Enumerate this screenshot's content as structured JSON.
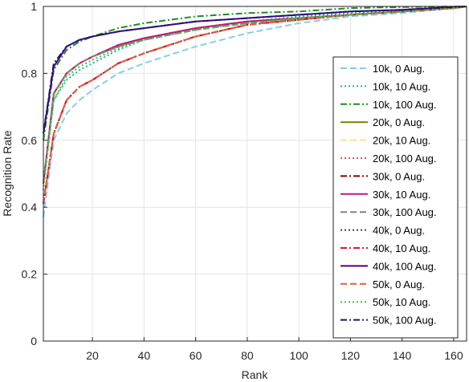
{
  "chart_data": {
    "type": "line",
    "xlabel": "Rank",
    "ylabel": "Recognition Rate",
    "xlim": [
      1,
      165
    ],
    "ylim": [
      0,
      1
    ],
    "xticks": [
      20,
      40,
      60,
      80,
      100,
      120,
      140,
      160
    ],
    "yticks": [
      0,
      0.2,
      0.4,
      0.6,
      0.8,
      1
    ],
    "ytick_labels": [
      "0",
      "0.2",
      "0.4",
      "0.6",
      "0.8",
      "1"
    ],
    "grid": true,
    "legend_position": "bottom-right",
    "x": [
      1,
      5,
      10,
      15,
      20,
      30,
      40,
      60,
      80,
      100,
      120,
      140,
      160,
      165
    ],
    "series": [
      {
        "name": "10k, 0 Aug.",
        "color": "#87ceeb",
        "dash": "dash",
        "values": [
          0.37,
          0.6,
          0.68,
          0.72,
          0.75,
          0.8,
          0.83,
          0.88,
          0.92,
          0.95,
          0.97,
          0.98,
          0.995,
          1.0
        ]
      },
      {
        "name": "10k, 10 Aug.",
        "color": "#20b2aa",
        "dash": "dot",
        "values": [
          0.48,
          0.72,
          0.78,
          0.81,
          0.83,
          0.87,
          0.9,
          0.935,
          0.955,
          0.97,
          0.98,
          0.99,
          0.995,
          1.0
        ]
      },
      {
        "name": "10k, 100 Aug.",
        "color": "#228b22",
        "dash": "dashdot",
        "values": [
          0.6,
          0.81,
          0.87,
          0.895,
          0.91,
          0.935,
          0.95,
          0.97,
          0.98,
          0.985,
          0.995,
          0.998,
          1.0,
          1.0
        ]
      },
      {
        "name": "20k, 0 Aug.",
        "color": "#808000",
        "dash": "solid",
        "values": [
          0.47,
          0.74,
          0.8,
          0.83,
          0.85,
          0.88,
          0.905,
          0.935,
          0.955,
          0.965,
          0.975,
          0.985,
          0.995,
          1.0
        ]
      },
      {
        "name": "20k, 10 Aug.",
        "color": "#f0e68c",
        "dash": "dash",
        "values": [
          0.47,
          0.73,
          0.8,
          0.83,
          0.85,
          0.88,
          0.9,
          0.93,
          0.95,
          0.965,
          0.975,
          0.985,
          0.995,
          1.0
        ]
      },
      {
        "name": "20k, 100 Aug.",
        "color": "#cd5c5c",
        "dash": "dot",
        "values": [
          0.47,
          0.74,
          0.8,
          0.83,
          0.85,
          0.885,
          0.905,
          0.935,
          0.955,
          0.965,
          0.975,
          0.985,
          0.995,
          1.0
        ]
      },
      {
        "name": "30k, 0 Aug.",
        "color": "#800000",
        "dash": "dashdot",
        "values": [
          0.41,
          0.62,
          0.72,
          0.76,
          0.78,
          0.83,
          0.86,
          0.91,
          0.945,
          0.96,
          0.975,
          0.985,
          0.995,
          1.0
        ]
      },
      {
        "name": "30k, 10 Aug.",
        "color": "#c71585",
        "dash": "solid",
        "values": [
          0.47,
          0.74,
          0.8,
          0.83,
          0.85,
          0.885,
          0.905,
          0.935,
          0.955,
          0.965,
          0.975,
          0.985,
          0.995,
          1.0
        ]
      },
      {
        "name": "30k, 100 Aug.",
        "color": "#808080",
        "dash": "dash",
        "values": [
          0.47,
          0.74,
          0.8,
          0.83,
          0.85,
          0.88,
          0.9,
          0.93,
          0.95,
          0.965,
          0.975,
          0.985,
          0.995,
          1.0
        ]
      },
      {
        "name": "40k, 0 Aug.",
        "color": "#2f4f2f",
        "dash": "dot",
        "values": [
          0.41,
          0.62,
          0.72,
          0.76,
          0.78,
          0.83,
          0.86,
          0.91,
          0.945,
          0.96,
          0.975,
          0.985,
          0.995,
          1.0
        ]
      },
      {
        "name": "40k, 10 Aug.",
        "color": "#dc143c",
        "dash": "dashdot",
        "values": [
          0.41,
          0.62,
          0.72,
          0.76,
          0.78,
          0.83,
          0.86,
          0.91,
          0.945,
          0.96,
          0.975,
          0.985,
          0.995,
          1.0
        ]
      },
      {
        "name": "40k, 100 Aug.",
        "color": "#4b0082",
        "dash": "solid",
        "values": [
          0.62,
          0.82,
          0.88,
          0.9,
          0.91,
          0.925,
          0.935,
          0.955,
          0.965,
          0.975,
          0.985,
          0.99,
          0.998,
          1.0
        ]
      },
      {
        "name": "50k, 0 Aug.",
        "color": "#e55b3c",
        "dash": "dash",
        "values": [
          0.41,
          0.62,
          0.72,
          0.76,
          0.78,
          0.83,
          0.86,
          0.91,
          0.945,
          0.96,
          0.975,
          0.985,
          0.995,
          1.0
        ]
      },
      {
        "name": "50k, 10 Aug.",
        "color": "#32cd32",
        "dash": "dot",
        "values": [
          0.45,
          0.72,
          0.79,
          0.82,
          0.84,
          0.875,
          0.9,
          0.93,
          0.95,
          0.965,
          0.975,
          0.985,
          0.995,
          1.0
        ]
      },
      {
        "name": "50k, 100 Aug.",
        "color": "#191970",
        "dash": "dashdot",
        "values": [
          0.62,
          0.83,
          0.88,
          0.9,
          0.91,
          0.925,
          0.935,
          0.955,
          0.965,
          0.975,
          0.985,
          0.99,
          0.998,
          1.0
        ]
      }
    ]
  }
}
